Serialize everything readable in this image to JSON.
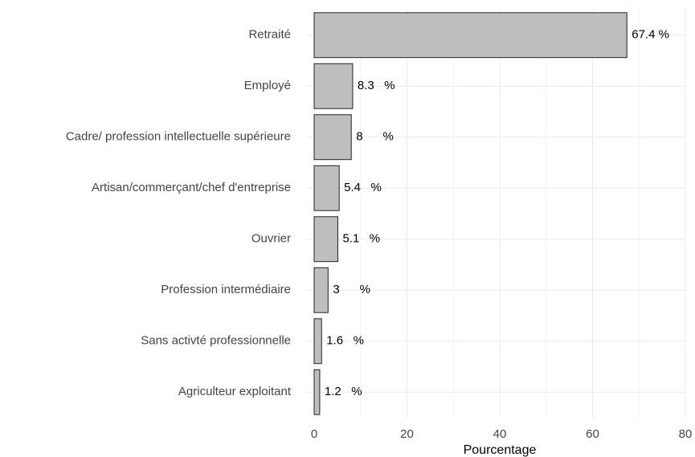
{
  "chart_data": {
    "type": "bar",
    "orientation": "horizontal",
    "x_label": "Pourcentage",
    "categories": [
      "Retraité",
      "Employé",
      "Cadre/ profession intellectuelle supérieure",
      "Artisan/commerçant/chef d'entreprise",
      "Ouvrier",
      "Profession intermédiaire",
      "Sans activté professionnelle",
      "Agriculteur exploitant"
    ],
    "values": [
      67.4,
      8.3,
      8,
      5.4,
      5.1,
      3,
      1.6,
      1.2
    ],
    "value_labels": [
      "67.4 %",
      "8.3   %",
      "8      %",
      "5.4   %",
      "5.1   %",
      "3      %",
      "1.6   %",
      "1.2   %"
    ],
    "color": "#bebebe",
    "xlim": [
      0,
      80
    ],
    "xticks": [
      0,
      20,
      40,
      60,
      80
    ],
    "minor_xticks": [
      10,
      30,
      50,
      70
    ],
    "grid": true
  }
}
